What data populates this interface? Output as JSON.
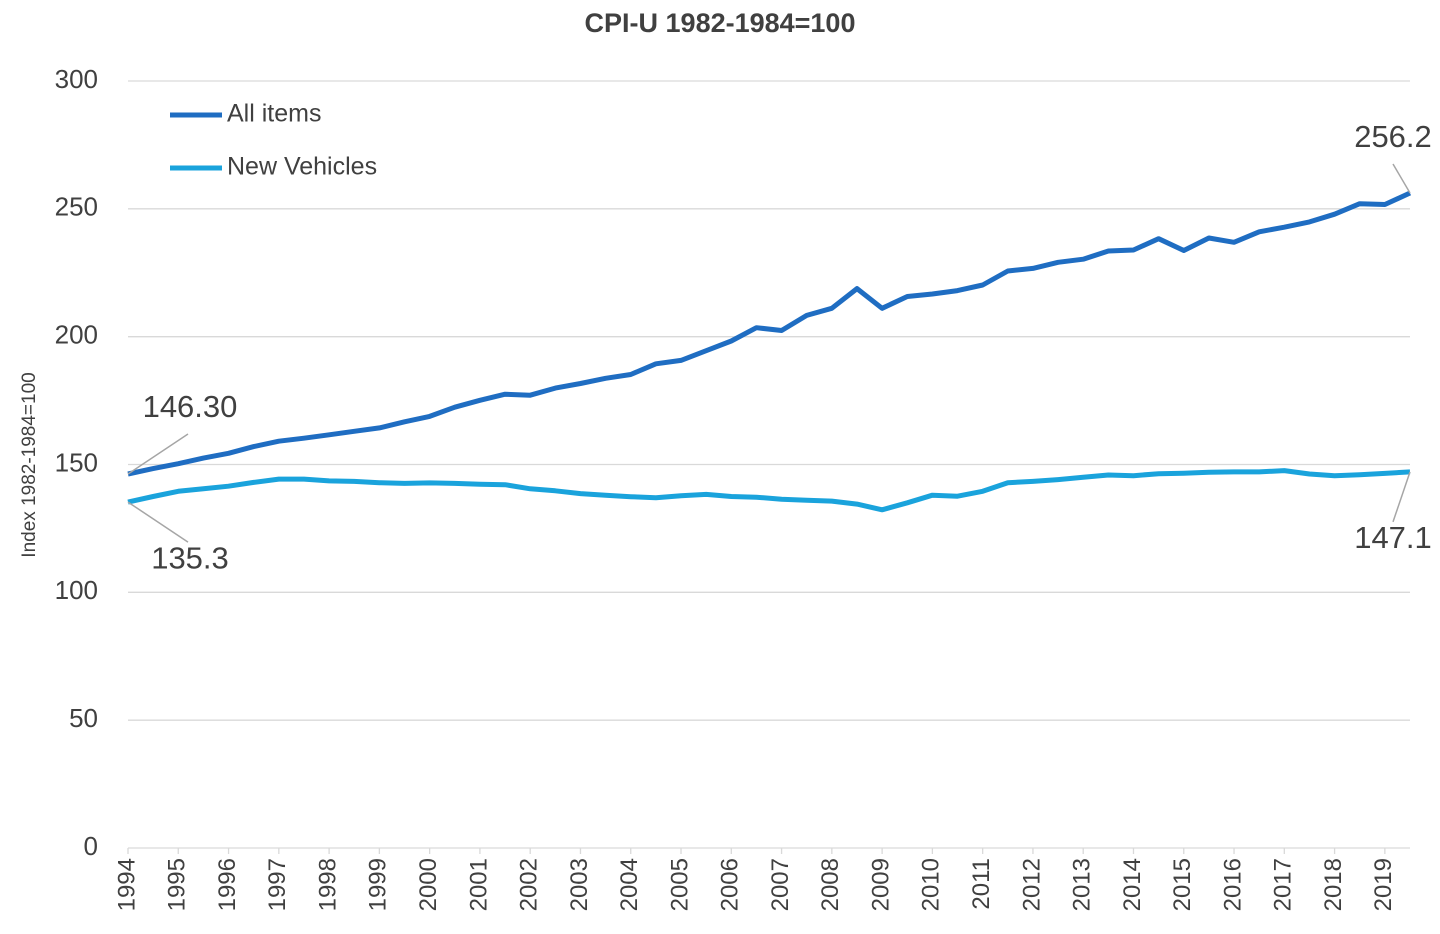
{
  "chart_data": {
    "type": "line",
    "title": "CPI-U 1982-1984=100",
    "y_label": "Index 1982-1984=100",
    "x": [
      1994,
      1994.5,
      1995,
      1995.5,
      1996,
      1996.5,
      1997,
      1997.5,
      1998,
      1998.5,
      1999,
      1999.5,
      2000,
      2000.5,
      2001,
      2001.5,
      2002,
      2002.5,
      2003,
      2003.5,
      2004,
      2004.5,
      2005,
      2005.5,
      2006,
      2006.5,
      2007,
      2007.5,
      2008,
      2008.5,
      2009,
      2009.5,
      2010,
      2010.5,
      2011,
      2011.5,
      2012,
      2012.5,
      2013,
      2013.5,
      2014,
      2014.5,
      2015,
      2015.5,
      2016,
      2016.5,
      2017,
      2017.5,
      2018,
      2018.5,
      2019,
      2019.5
    ],
    "series": [
      {
        "name": "All items",
        "color": "#1f6dc2",
        "values": [
          146.3,
          148.4,
          150.3,
          152.5,
          154.4,
          157.0,
          159.1,
          160.3,
          161.6,
          163.0,
          164.3,
          166.7,
          168.8,
          172.4,
          175.1,
          177.5,
          177.1,
          179.9,
          181.7,
          183.7,
          185.2,
          189.4,
          190.7,
          194.5,
          198.3,
          203.5,
          202.4,
          208.3,
          211.1,
          218.8,
          211.1,
          215.7,
          216.7,
          218.0,
          220.2,
          225.7,
          226.7,
          229.1,
          230.3,
          233.5,
          233.9,
          238.3,
          233.7,
          238.6,
          236.9,
          241.0,
          242.8,
          244.9,
          247.9,
          252.0,
          251.7,
          256.2
        ],
        "value_labels": [
          "146.30",
          null,
          null,
          null,
          null,
          null,
          null,
          null,
          null,
          null,
          null,
          null,
          null,
          null,
          null,
          null,
          null,
          null,
          null,
          null,
          null,
          null,
          null,
          null,
          null,
          null,
          null,
          null,
          null,
          null,
          null,
          null,
          null,
          null,
          null,
          null,
          null,
          null,
          null,
          null,
          null,
          null,
          null,
          null,
          null,
          null,
          null,
          null,
          null,
          null,
          null,
          "256.2"
        ]
      },
      {
        "name": "New Vehicles",
        "color": "#1aa3dc",
        "values": [
          135.3,
          137.5,
          139.5,
          140.5,
          141.5,
          143.0,
          144.3,
          144.3,
          143.6,
          143.4,
          142.9,
          142.6,
          142.8,
          142.6,
          142.3,
          142.1,
          140.5,
          139.7,
          138.6,
          138.0,
          137.4,
          137.0,
          137.8,
          138.3,
          137.5,
          137.2,
          136.4,
          136.0,
          135.7,
          134.5,
          132.3,
          135.0,
          138.0,
          137.6,
          139.5,
          142.9,
          143.4,
          144.1,
          145.0,
          145.9,
          145.6,
          146.4,
          146.6,
          147.0,
          147.1,
          147.1,
          147.6,
          146.3,
          145.6,
          146.0,
          146.5,
          147.1
        ],
        "value_labels": [
          "135.3",
          null,
          null,
          null,
          null,
          null,
          null,
          null,
          null,
          null,
          null,
          null,
          null,
          null,
          null,
          null,
          null,
          null,
          null,
          null,
          null,
          null,
          null,
          null,
          null,
          null,
          null,
          null,
          null,
          null,
          null,
          null,
          null,
          null,
          null,
          null,
          null,
          null,
          null,
          null,
          null,
          null,
          null,
          null,
          null,
          null,
          null,
          null,
          null,
          null,
          null,
          "147.1"
        ]
      }
    ],
    "xlim": [
      1994,
      2019.5
    ],
    "xticks": [
      1994,
      1995,
      1996,
      1997,
      1998,
      1999,
      2000,
      2001,
      2002,
      2003,
      2004,
      2005,
      2006,
      2007,
      2008,
      2009,
      2010,
      2011,
      2012,
      2013,
      2014,
      2015,
      2016,
      2017,
      2018,
      2019
    ],
    "ylim": [
      0,
      300
    ],
    "yticks": [
      0,
      50,
      100,
      150,
      200,
      250,
      300
    ],
    "grid": true,
    "legend": "upper left"
  }
}
